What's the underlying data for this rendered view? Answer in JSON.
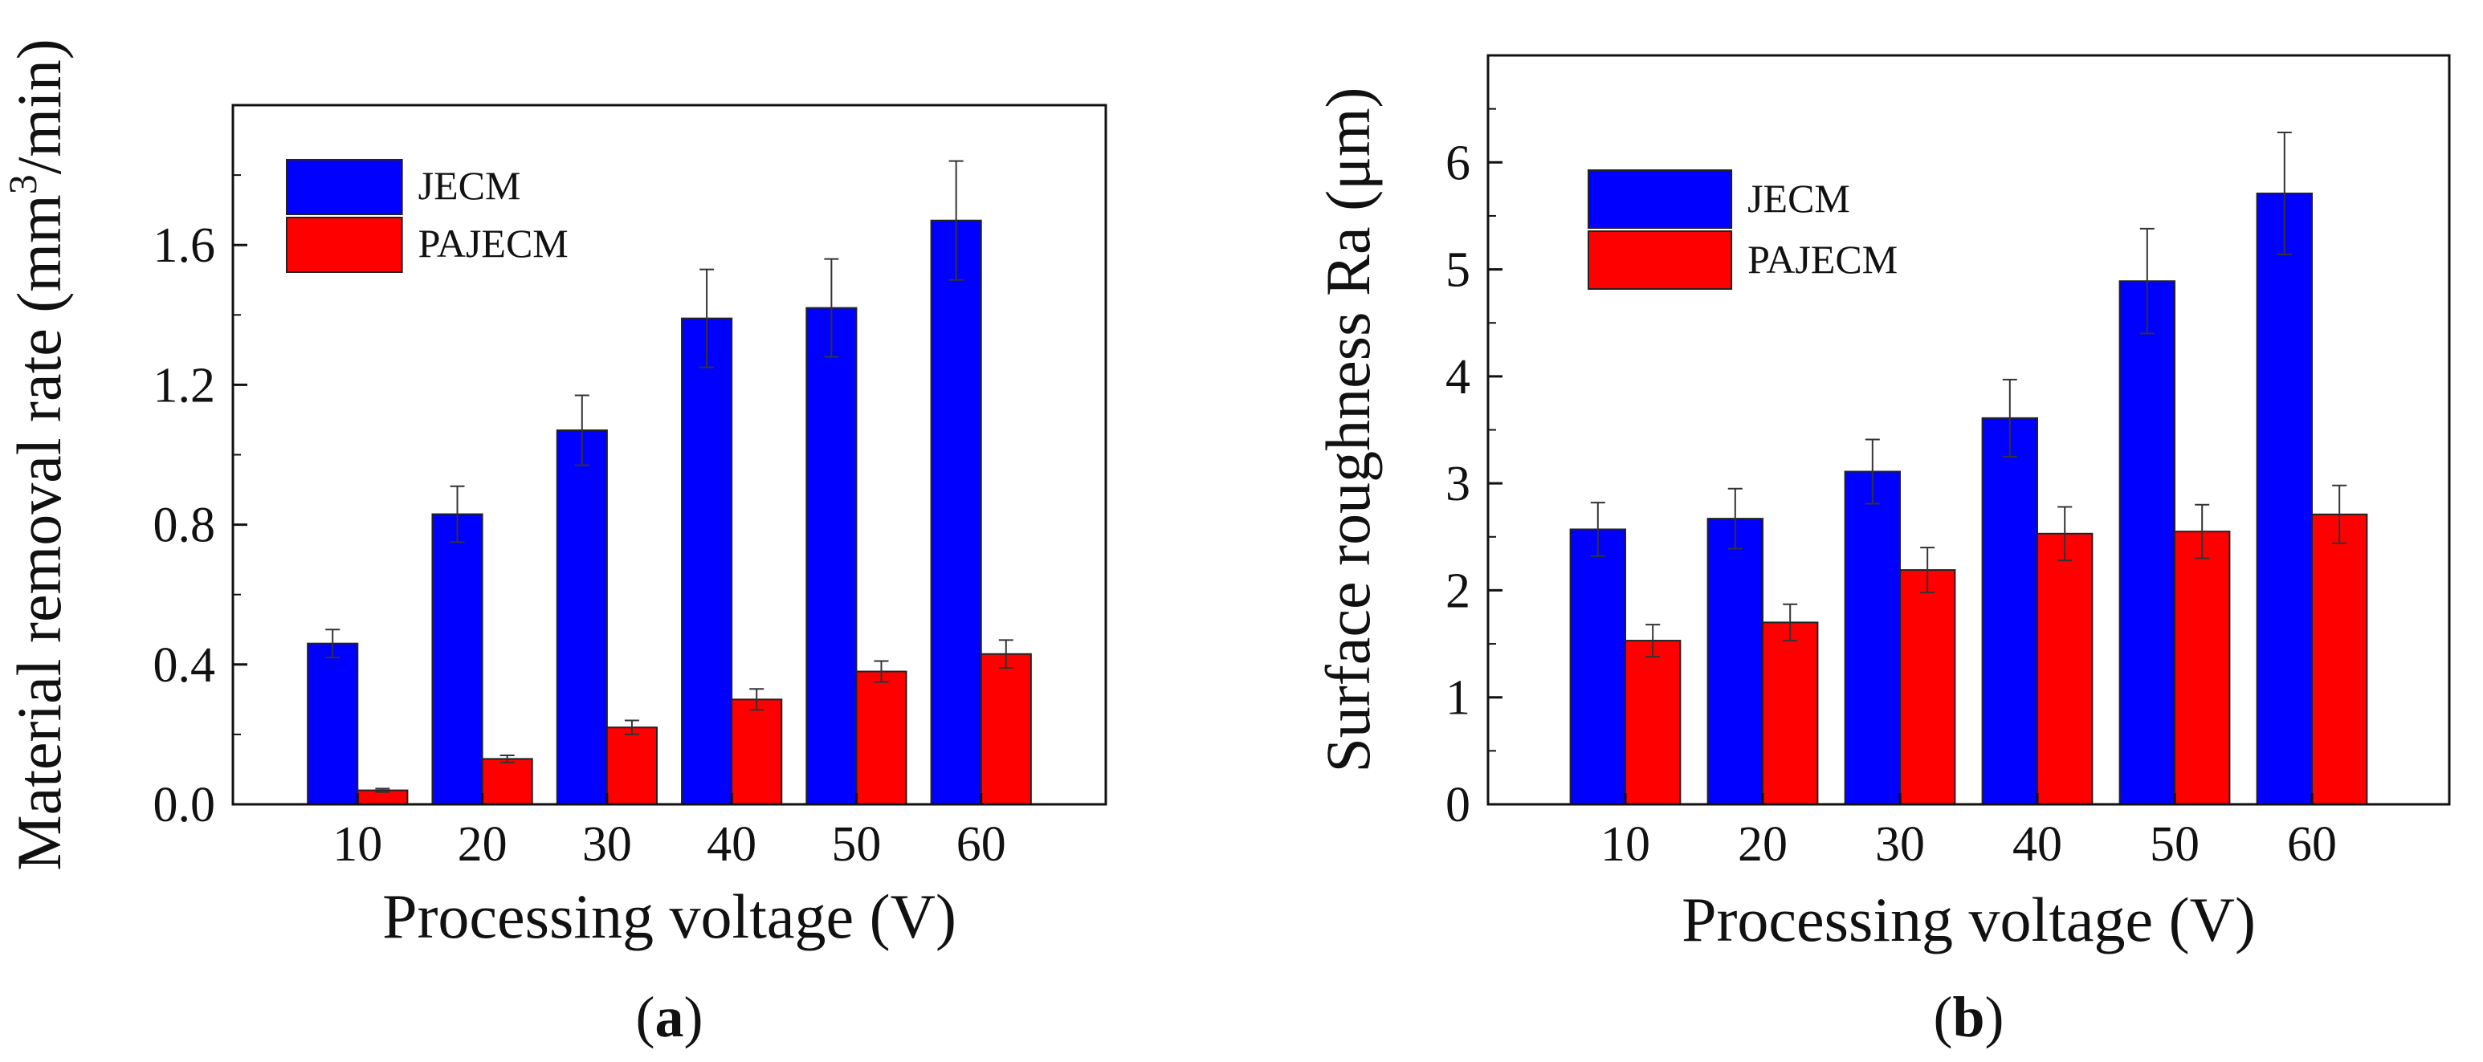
{
  "chart_data": [
    {
      "type": "bar",
      "panel_label": "(a)",
      "panel_letter": "a",
      "xlabel": "Processing voltage (V)",
      "ylabel": "Material removal rate (mm3/min)",
      "ylabel_parts": {
        "before": "Material removal rate (mm",
        "sup": "3",
        "after": "/min)"
      },
      "categories": [
        "10",
        "20",
        "30",
        "40",
        "50",
        "60"
      ],
      "ylim": [
        0,
        2.0
      ],
      "yticks": [
        0.0,
        0.4,
        0.8,
        1.2,
        1.6
      ],
      "ytick_labels": [
        "0.0",
        "0.4",
        "0.8",
        "1.2",
        "1.6"
      ],
      "legend_position": "top-left",
      "series": [
        {
          "name": "JECM",
          "color": "#0000FF",
          "values": [
            0.46,
            0.83,
            1.07,
            1.39,
            1.42,
            1.67
          ],
          "errors": [
            0.04,
            0.08,
            0.1,
            0.14,
            0.14,
            0.17
          ]
        },
        {
          "name": "PAJECM",
          "color": "#FF0000",
          "values": [
            0.04,
            0.13,
            0.22,
            0.3,
            0.38,
            0.43
          ],
          "errors": [
            0.005,
            0.01,
            0.02,
            0.03,
            0.03,
            0.04
          ]
        }
      ]
    },
    {
      "type": "bar",
      "panel_label": "(b)",
      "panel_letter": "b",
      "xlabel": "Processing voltage (V)",
      "ylabel": "Surface roughness Ra (μm)",
      "categories": [
        "10",
        "20",
        "30",
        "40",
        "50",
        "60"
      ],
      "ylim": [
        0,
        7.0
      ],
      "yticks": [
        0,
        1,
        2,
        3,
        4,
        5,
        6
      ],
      "ytick_labels": [
        "0",
        "1",
        "2",
        "3",
        "4",
        "5",
        "6"
      ],
      "legend_position": "top-left",
      "series": [
        {
          "name": "JECM",
          "color": "#0000FF",
          "values": [
            2.57,
            2.67,
            3.11,
            3.61,
            4.89,
            5.71
          ],
          "errors": [
            0.25,
            0.28,
            0.3,
            0.36,
            0.49,
            0.57
          ]
        },
        {
          "name": "PAJECM",
          "color": "#FF0000",
          "values": [
            1.53,
            1.7,
            2.19,
            2.53,
            2.55,
            2.71
          ],
          "errors": [
            0.15,
            0.17,
            0.21,
            0.25,
            0.25,
            0.27
          ]
        }
      ]
    }
  ]
}
